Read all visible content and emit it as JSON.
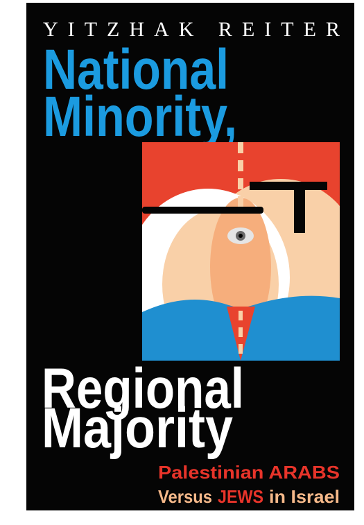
{
  "author": "YITZHAK REITER",
  "title": {
    "line1": "National",
    "line2": "Minority,",
    "line3": "Regional",
    "line4": "Majority"
  },
  "subtitle": {
    "line1": "Palestinian ARABS",
    "line2": [
      "Versus",
      "JEWS",
      "in Israel"
    ]
  }
}
